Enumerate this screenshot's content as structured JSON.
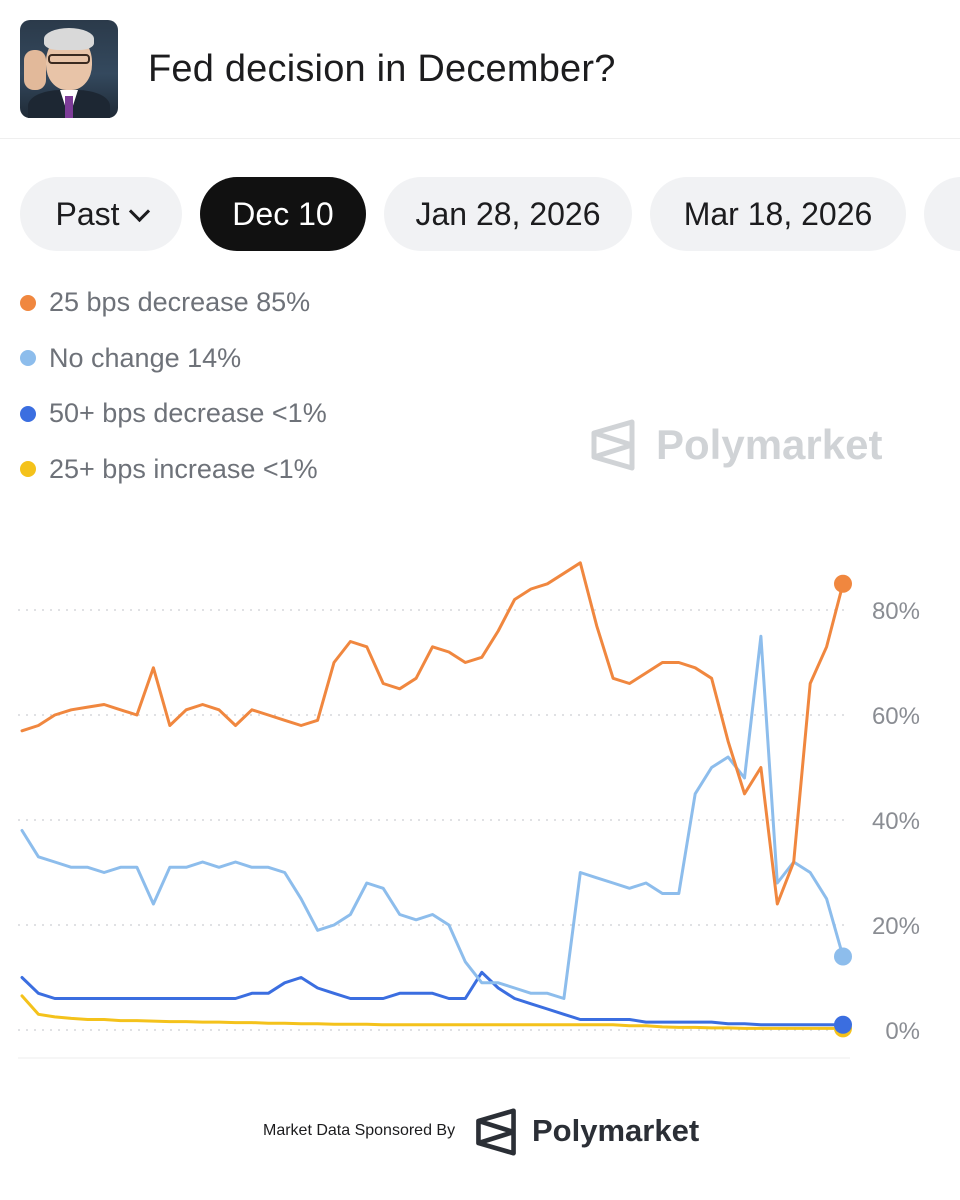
{
  "header": {
    "title": "Fed decision in December?"
  },
  "tabs": [
    {
      "label": "Past",
      "has_dropdown": true,
      "active": false
    },
    {
      "label": "Dec 10",
      "active": true
    },
    {
      "label": "Jan 28, 2026",
      "active": false
    },
    {
      "label": "Mar 18, 2026",
      "active": false
    }
  ],
  "watermark": {
    "text": "Polymarket"
  },
  "footer": {
    "sponsor_text": "Market Data Sponsored By",
    "brand": "Polymarket"
  },
  "colors": {
    "orange": "#f0873f",
    "light_blue": "#8dbdec",
    "blue": "#3b6ee0",
    "yellow": "#f4c21b"
  },
  "chart_data": {
    "type": "line",
    "title": "",
    "xlabel": "",
    "ylabel": "",
    "ylim": [
      0,
      90
    ],
    "y_ticks": [
      "0%",
      "20%",
      "40%",
      "60%",
      "80%"
    ],
    "y_tick_values": [
      0,
      20,
      40,
      60,
      80
    ],
    "grid": true,
    "y_axis_side": "right",
    "x": [
      0,
      2,
      4,
      6,
      8,
      10,
      12,
      14,
      16,
      18,
      20,
      22,
      24,
      26,
      28,
      30,
      32,
      34,
      36,
      38,
      40,
      42,
      44,
      46,
      48,
      50,
      52,
      54,
      56,
      58,
      60,
      62,
      64,
      66,
      68,
      70,
      72,
      74,
      76,
      78,
      80,
      82,
      84,
      86,
      88,
      90,
      92,
      94,
      96,
      98,
      100
    ],
    "series": [
      {
        "name": "25 bps decrease",
        "label": "25 bps decrease 85%",
        "color": "#f0873f",
        "values": [
          57,
          58,
          60,
          61,
          61.5,
          62,
          61,
          60,
          69,
          58,
          61,
          62,
          61,
          58,
          61,
          60,
          59,
          58,
          59,
          70,
          74,
          73,
          66,
          65,
          67,
          73,
          72,
          70,
          71,
          76,
          82,
          84,
          85,
          87,
          89,
          77,
          67,
          66,
          68,
          70,
          70,
          69,
          67,
          55,
          45,
          50,
          24,
          32,
          66,
          73,
          85
        ]
      },
      {
        "name": "No change",
        "label": "No change 14%",
        "color": "#8dbdec",
        "values": [
          38,
          33,
          32,
          31,
          31,
          30,
          31,
          31,
          24,
          31,
          31,
          32,
          31,
          32,
          31,
          31,
          30,
          25,
          19,
          20,
          22,
          28,
          27,
          22,
          21,
          22,
          20,
          13,
          9,
          9,
          8,
          7,
          7,
          6,
          30,
          29,
          28,
          27,
          28,
          26,
          26,
          45,
          50,
          52,
          48,
          75,
          28,
          32,
          30,
          25,
          14
        ]
      },
      {
        "name": "50+ bps decrease",
        "label": "50+ bps decrease <1%",
        "color": "#3b6ee0",
        "values": [
          10,
          7,
          6,
          6,
          6,
          6,
          6,
          6,
          6,
          6,
          6,
          6,
          6,
          6,
          7,
          7,
          9,
          10,
          8,
          7,
          6,
          6,
          6,
          7,
          7,
          7,
          6,
          6,
          11,
          8,
          6,
          5,
          4,
          3,
          2,
          2,
          2,
          2,
          1.5,
          1.5,
          1.5,
          1.5,
          1.5,
          1.2,
          1.2,
          1,
          1,
          1,
          1,
          1,
          1
        ]
      },
      {
        "name": "25+ bps increase",
        "label": "25+ bps increase <1%",
        "color": "#f4c21b",
        "values": [
          6.5,
          3,
          2.5,
          2.2,
          2,
          2,
          1.8,
          1.8,
          1.7,
          1.6,
          1.6,
          1.5,
          1.5,
          1.4,
          1.4,
          1.3,
          1.3,
          1.2,
          1.2,
          1.1,
          1.1,
          1.1,
          1,
          1,
          1,
          1,
          1,
          1,
          1,
          1,
          1,
          1,
          1,
          1,
          1,
          1,
          1,
          0.8,
          0.8,
          0.6,
          0.5,
          0.5,
          0.4,
          0.4,
          0.3,
          0.3,
          0.3,
          0.3,
          0.3,
          0.3,
          0.3
        ]
      }
    ]
  }
}
